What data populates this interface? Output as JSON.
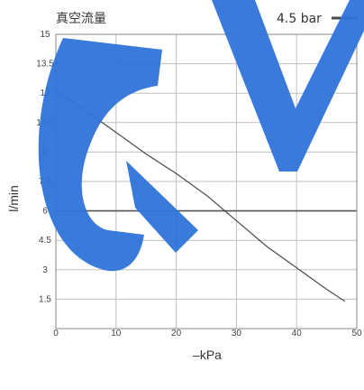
{
  "chart_data": {
    "type": "line",
    "title": "真空流量",
    "xlabel": "–kPa",
    "ylabel": "l/min",
    "xlim": [
      0,
      50
    ],
    "ylim": [
      0,
      15
    ],
    "x_ticks": [
      0,
      10,
      20,
      30,
      40,
      50
    ],
    "x_tick_labels": [
      "0",
      "10",
      "20",
      "30",
      "40",
      "50"
    ],
    "y_ticks": [
      1.5,
      3,
      4.5,
      6,
      7.5,
      9,
      10.5,
      12,
      13.5,
      15
    ],
    "y_tick_labels": [
      "1.5",
      "3",
      "4.5",
      "6",
      "7.5",
      "9",
      "10.5",
      "12",
      "13.5",
      "15"
    ],
    "grid": true,
    "legend_position": "top-right",
    "series": [
      {
        "name": "4.5 bar",
        "x": [
          0,
          5,
          10,
          15,
          20,
          25,
          30,
          35,
          40,
          45,
          48
        ],
        "y": [
          12.1,
          11.1,
          10.0,
          8.9,
          7.9,
          6.8,
          5.5,
          4.2,
          3.1,
          2.0,
          1.4
        ]
      }
    ],
    "colors": {
      "line": "#4a4a4a",
      "grid": "#bfbfbf",
      "frame": "#888888",
      "watermark": "#2f73d9"
    }
  }
}
